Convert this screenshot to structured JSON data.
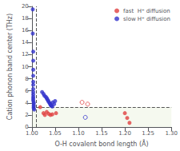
{
  "chart_data": {
    "type": "scatter",
    "xlabel": "O-H covalent bond length (Å)",
    "ylabel": "Cation phonon band center (THz)",
    "xlim": [
      1.0,
      1.3
    ],
    "ylim": [
      0,
      20
    ],
    "xticks": [
      {
        "value": 1.0,
        "label": "1.00"
      },
      {
        "value": 1.05,
        "label": "1.05"
      },
      {
        "value": 1.1,
        "label": "1.10"
      },
      {
        "value": 1.15,
        "label": "1.15"
      },
      {
        "value": 1.2,
        "label": "1.20"
      },
      {
        "value": 1.25,
        "label": "1.25"
      },
      {
        "value": 1.3,
        "label": "1.30"
      }
    ],
    "yticks": [
      0,
      2,
      4,
      6,
      8,
      10,
      12,
      14,
      16,
      18,
      20
    ],
    "grid": false,
    "legend": "upper right",
    "reference_lines": {
      "x": [
        1.008
      ],
      "y": [
        3.3
      ],
      "color": "#555555",
      "line_style": "dashed"
    },
    "shaded_band": {
      "y": [
        0,
        3.3
      ],
      "color": "#d8e8c0"
    },
    "series": [
      {
        "name": "fast  H⁺ diffusion",
        "color": "#e04040",
        "marker": "filled",
        "x": [
          1.018,
          1.025,
          1.028,
          1.032,
          1.036,
          1.04,
          1.044,
          1.052,
          1.2,
          1.205,
          1.21
        ],
        "values": [
          3.3,
          2.3,
          2.0,
          2.5,
          2.2,
          2.0,
          2.1,
          2.3,
          2.3,
          1.5,
          0.7
        ]
      },
      {
        "color": "#e04040",
        "marker": "open",
        "x": [
          1.108,
          1.12
        ],
        "values": [
          4.1,
          3.8
        ]
      },
      {
        "name": "slow H⁺ diffusion",
        "color": "#3333cc",
        "marker": "filled",
        "x": [
          1.002,
          1.002,
          1.003,
          1.003,
          1.003,
          1.003,
          1.003,
          1.003,
          1.003,
          1.003,
          1.003,
          1.003,
          1.003,
          1.003,
          1.004,
          1.004,
          1.004,
          1.004,
          1.004,
          1.005,
          1.022,
          1.025,
          1.027,
          1.03,
          1.032,
          1.033,
          1.035,
          1.036,
          1.038,
          1.039,
          1.04,
          1.041,
          1.042,
          1.044,
          1.045,
          1.048,
          1.05
        ],
        "values": [
          19.5,
          15.5,
          12.5,
          11.0,
          9.5,
          8.5,
          7.5,
          7.0,
          6.3,
          5.8,
          5.4,
          5.0,
          4.7,
          4.4,
          4.1,
          3.9,
          3.6,
          3.4,
          3.1,
          2.9,
          5.8,
          5.5,
          5.2,
          5.0,
          4.8,
          4.6,
          4.4,
          4.2,
          4.0,
          3.9,
          3.7,
          3.6,
          3.5,
          3.4,
          4.1,
          3.8,
          4.3
        ]
      },
      {
        "color": "#3333cc",
        "marker": "open",
        "x": [
          1.115
        ],
        "values": [
          1.6
        ]
      }
    ]
  }
}
